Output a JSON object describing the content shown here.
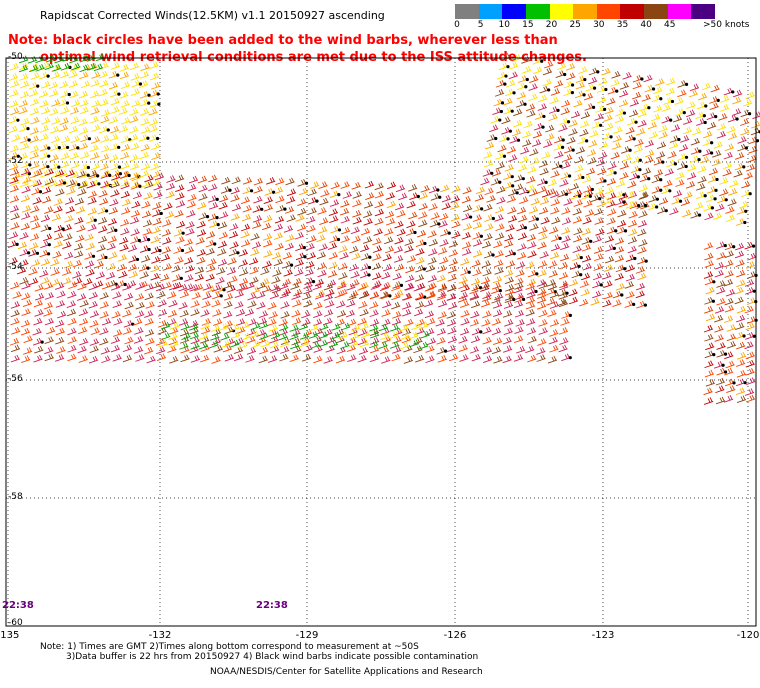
{
  "title": "Rapidscat Corrected Winds(12.5KM) v1.1 20150927 ascending",
  "note_line1": "Note: black circles have been added to the wind barbs, wherever less than",
  "note_line2": "optimal wind retrieval conditions are met due to the ISS attitude changes.",
  "legend": {
    "labels": [
      "0",
      "5",
      "10",
      "15",
      "20",
      "25",
      "30",
      "35",
      "40",
      "45"
    ],
    "unit_label": ">50 knots",
    "colors": [
      "#808080",
      "#00a0ff",
      "#0000ff",
      "#00c000",
      "#ffff00",
      "#ffa500",
      "#ff4500",
      "#c00000",
      "#8b4513",
      "#ff00ff",
      "#4b0082"
    ]
  },
  "axes": {
    "lon_labels": [
      "-135",
      "-132",
      "-129",
      "-126",
      "-123",
      "-120"
    ],
    "lat_labels": [
      "-50",
      "-52",
      "-54",
      "-56",
      "-58",
      "-60"
    ]
  },
  "time_labels": [
    "22:38",
    "22:38"
  ],
  "footer": {
    "line1": "Note: 1) Times are GMT 2)Times along bottom correspond to measurement at ~50S",
    "line2": "3)Data buffer is 22 hrs from 20150927 4) Black wind barbs indicate possible contamination",
    "line3": "NOAA/NESDIS/Center for Satellite Applications and Research"
  }
}
